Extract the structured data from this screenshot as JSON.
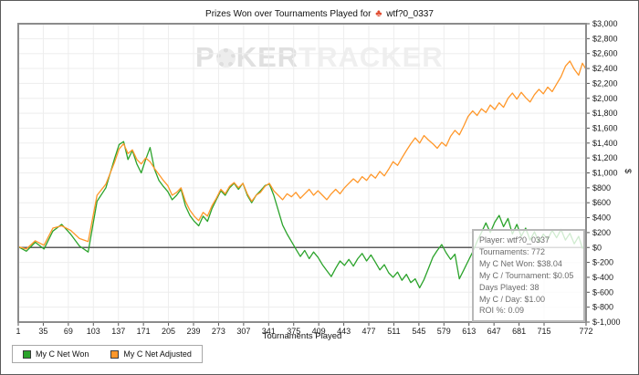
{
  "header": {
    "title_prefix": "Prizes Won over Tournaments Played for",
    "player_name": "wtf?0_0337",
    "club_glyph": "♣"
  },
  "watermark": {
    "p1": "P",
    "p2": "KER",
    "p3": "TRACKER",
    "chip_icon": "poker-chip"
  },
  "axes": {
    "x_label": "Tournaments Played",
    "y_label": "$"
  },
  "legend": [
    {
      "label": "My C Net Won",
      "color": "#2ba32b"
    },
    {
      "label": "My C Net Adjusted",
      "color": "#ff9729"
    }
  ],
  "tooltip": {
    "lines": [
      "Player: wtf?0_0337",
      "Tournaments: 772",
      "My C Net Won: $38.04",
      "My C / Tournament: $0.05",
      "Days Played: 38",
      "My C / Day: $1.00",
      "ROI %: 0.09"
    ]
  },
  "chart_data": {
    "type": "line",
    "title": "Prizes Won over Tournaments Played for wtf?0_0337",
    "xlabel": "Tournaments Played",
    "ylabel": "$",
    "xlim": [
      1,
      772
    ],
    "ylim": [
      -1000,
      3000
    ],
    "grid": true,
    "legend_position": "bottom-left",
    "x_ticks": [
      1,
      35,
      69,
      103,
      137,
      171,
      205,
      239,
      273,
      307,
      341,
      375,
      409,
      443,
      477,
      511,
      545,
      579,
      613,
      647,
      681,
      715,
      772
    ],
    "y_tick_values": [
      3000,
      2800,
      2600,
      2400,
      2200,
      2000,
      1800,
      1600,
      1400,
      1200,
      1000,
      800,
      600,
      400,
      200,
      0,
      -200,
      -400,
      -600,
      -800,
      -1000
    ],
    "y_tick_labels": [
      "$3,000",
      "$2,800",
      "$2,600",
      "$2,400",
      "$2,200",
      "$2,000",
      "$1,800",
      "$1,600",
      "$1,400",
      "$1,200",
      "$1,000",
      "$800",
      "$600",
      "$400",
      "$200",
      "$0",
      "$-200",
      "$-400",
      "$-600",
      "$-800",
      "$-1,000"
    ],
    "x": [
      1,
      12,
      24,
      36,
      48,
      60,
      72,
      84,
      96,
      108,
      120,
      132,
      138,
      144,
      150,
      156,
      162,
      168,
      174,
      180,
      186,
      192,
      198,
      204,
      210,
      216,
      222,
      228,
      234,
      240,
      246,
      252,
      258,
      264,
      270,
      276,
      282,
      288,
      294,
      300,
      306,
      312,
      318,
      324,
      330,
      336,
      342,
      348,
      354,
      360,
      366,
      372,
      378,
      384,
      390,
      396,
      402,
      408,
      414,
      420,
      426,
      432,
      438,
      444,
      450,
      456,
      462,
      468,
      474,
      480,
      486,
      492,
      498,
      504,
      510,
      516,
      522,
      528,
      534,
      540,
      546,
      552,
      558,
      564,
      570,
      576,
      582,
      588,
      594,
      600,
      606,
      612,
      618,
      624,
      630,
      636,
      642,
      648,
      654,
      660,
      666,
      672,
      678,
      684,
      690,
      696,
      702,
      708,
      714,
      720,
      726,
      732,
      738,
      744,
      750,
      756,
      762,
      767,
      772
    ],
    "series": [
      {
        "name": "My C Net Won",
        "color": "#2ba32b",
        "values": [
          10,
          -50,
          70,
          -20,
          220,
          310,
          180,
          20,
          -60,
          620,
          800,
          1200,
          1380,
          1420,
          1180,
          1300,
          1120,
          1000,
          1180,
          1340,
          1050,
          900,
          820,
          750,
          640,
          700,
          780,
          560,
          430,
          350,
          290,
          420,
          350,
          520,
          640,
          760,
          700,
          800,
          860,
          780,
          860,
          700,
          600,
          700,
          760,
          830,
          850,
          700,
          500,
          300,
          180,
          80,
          -20,
          -120,
          -40,
          -150,
          -60,
          -130,
          -230,
          -310,
          -390,
          -280,
          -180,
          -240,
          -160,
          -250,
          -150,
          -80,
          -180,
          -100,
          -200,
          -300,
          -230,
          -340,
          -400,
          -330,
          -440,
          -360,
          -470,
          -420,
          -540,
          -430,
          -280,
          -130,
          -40,
          40,
          -70,
          -160,
          -90,
          -420,
          -300,
          -180,
          -60,
          80,
          200,
          330,
          200,
          340,
          430,
          280,
          390,
          180,
          310,
          150,
          260,
          100,
          210,
          70,
          180,
          110,
          230,
          130,
          240,
          100,
          190,
          50,
          150,
          -10,
          38
        ]
      },
      {
        "name": "My C Net Adjusted",
        "color": "#ff9729",
        "values": [
          10,
          -20,
          90,
          30,
          260,
          290,
          230,
          120,
          80,
          700,
          850,
          1150,
          1320,
          1390,
          1260,
          1310,
          1180,
          1120,
          1200,
          1150,
          1060,
          980,
          900,
          830,
          700,
          740,
          800,
          620,
          500,
          420,
          360,
          470,
          420,
          560,
          660,
          780,
          720,
          820,
          870,
          800,
          860,
          720,
          620,
          700,
          740,
          820,
          860,
          760,
          700,
          640,
          720,
          680,
          740,
          660,
          720,
          780,
          700,
          760,
          700,
          640,
          720,
          780,
          720,
          800,
          860,
          920,
          870,
          950,
          900,
          980,
          930,
          1020,
          960,
          1050,
          1150,
          1100,
          1200,
          1300,
          1390,
          1470,
          1400,
          1500,
          1440,
          1390,
          1330,
          1410,
          1360,
          1490,
          1570,
          1510,
          1630,
          1760,
          1830,
          1770,
          1860,
          1810,
          1910,
          1850,
          1940,
          1880,
          2000,
          2070,
          1990,
          2080,
          2010,
          1950,
          2050,
          2120,
          2060,
          2150,
          2090,
          2190,
          2290,
          2430,
          2500,
          2390,
          2310,
          2470,
          2390
        ]
      }
    ]
  }
}
